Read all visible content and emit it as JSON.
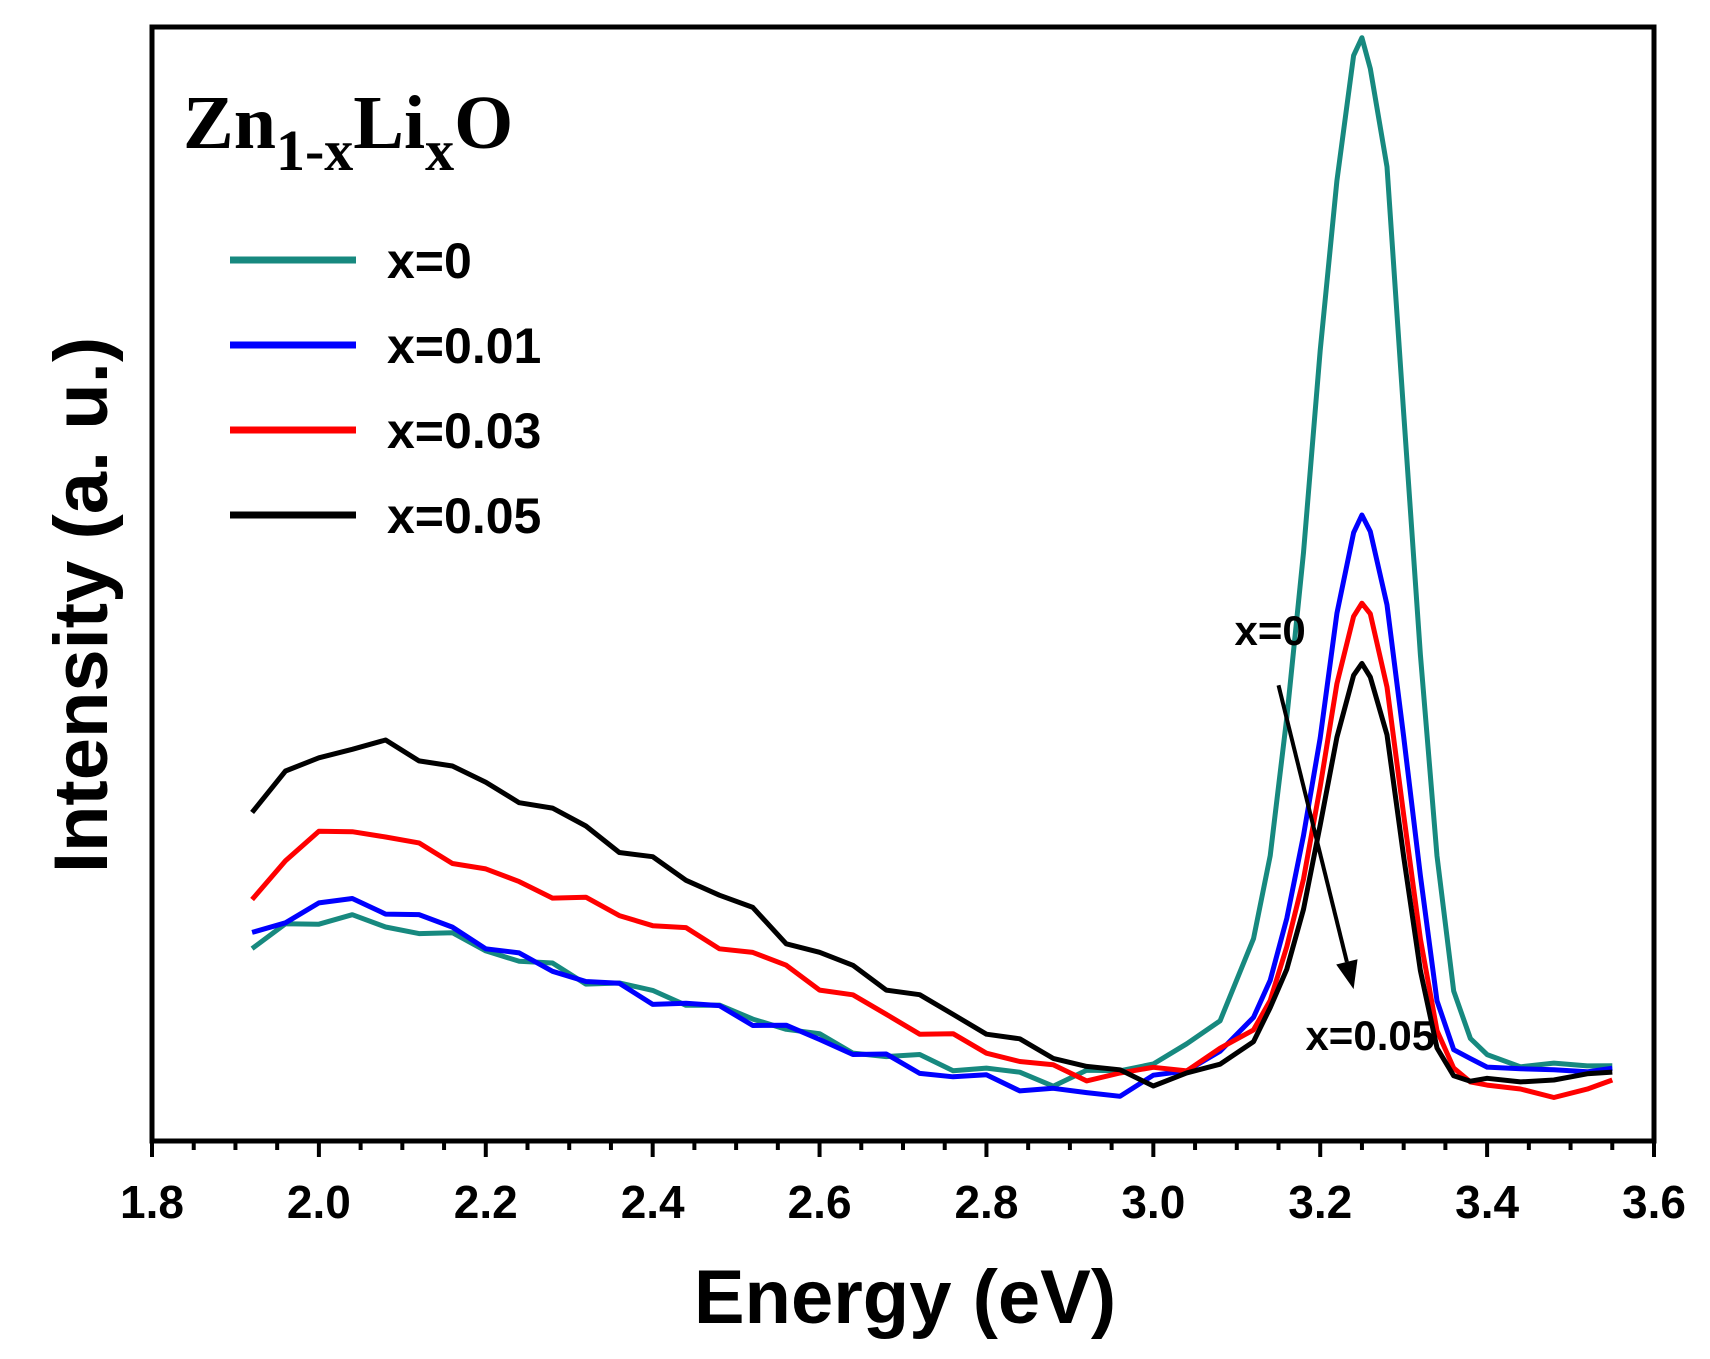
{
  "chart_data": {
    "type": "line",
    "title": "Zn1-xLixO",
    "title_parts": {
      "base1": "Zn",
      "sub1": "1-x",
      "base2": "Li",
      "sub2": "x",
      "base3": "O"
    },
    "xlabel": "Energy (eV)",
    "ylabel": "Intensity (a. u.)",
    "xlim": [
      1.8,
      3.6
    ],
    "ylim": [
      0,
      1.1
    ],
    "y_ticks_shown": false,
    "x_ticks": [
      1.8,
      2.0,
      2.2,
      2.4,
      2.6,
      2.8,
      3.0,
      3.2,
      3.4,
      3.6
    ],
    "x_tick_labels": [
      "1.8",
      "2.0",
      "2.2",
      "2.4",
      "2.6",
      "2.8",
      "3.0",
      "3.2",
      "3.4",
      "3.6"
    ],
    "grid": false,
    "legend_position": "top-left",
    "annotations": [
      {
        "text": "x=0",
        "x": 3.14,
        "y": 0.49
      },
      {
        "text": "x=0.05",
        "x": 3.26,
        "y": 0.09
      }
    ],
    "arrow": {
      "from": [
        3.15,
        0.45
      ],
      "to": [
        3.24,
        0.15
      ]
    },
    "series": [
      {
        "name": "x=0",
        "color": "#17897f",
        "x": [
          1.92,
          1.96,
          2.0,
          2.04,
          2.08,
          2.12,
          2.16,
          2.2,
          2.24,
          2.28,
          2.32,
          2.36,
          2.4,
          2.44,
          2.48,
          2.52,
          2.56,
          2.6,
          2.64,
          2.68,
          2.72,
          2.76,
          2.8,
          2.84,
          2.88,
          2.92,
          2.96,
          3.0,
          3.04,
          3.08,
          3.12,
          3.14,
          3.16,
          3.18,
          3.2,
          3.22,
          3.24,
          3.25,
          3.26,
          3.28,
          3.3,
          3.32,
          3.34,
          3.36,
          3.38,
          3.4,
          3.44,
          3.48,
          3.52,
          3.55
        ],
        "values": [
          0.19,
          0.21,
          0.22,
          0.22,
          0.21,
          0.21,
          0.2,
          0.19,
          0.18,
          0.17,
          0.16,
          0.155,
          0.145,
          0.14,
          0.13,
          0.12,
          0.115,
          0.1,
          0.09,
          0.085,
          0.08,
          0.075,
          0.07,
          0.065,
          0.06,
          0.065,
          0.07,
          0.08,
          0.09,
          0.12,
          0.2,
          0.28,
          0.42,
          0.58,
          0.78,
          0.95,
          1.07,
          1.09,
          1.06,
          0.96,
          0.72,
          0.48,
          0.28,
          0.15,
          0.1,
          0.085,
          0.075,
          0.075,
          0.075,
          0.075
        ]
      },
      {
        "name": "x=0.01",
        "color": "#0000ff",
        "x": [
          1.92,
          1.96,
          2.0,
          2.04,
          2.08,
          2.12,
          2.16,
          2.2,
          2.24,
          2.28,
          2.32,
          2.36,
          2.4,
          2.44,
          2.48,
          2.52,
          2.56,
          2.6,
          2.64,
          2.68,
          2.72,
          2.76,
          2.8,
          2.84,
          2.88,
          2.92,
          2.96,
          3.0,
          3.04,
          3.08,
          3.12,
          3.14,
          3.16,
          3.18,
          3.2,
          3.22,
          3.24,
          3.25,
          3.26,
          3.28,
          3.3,
          3.32,
          3.34,
          3.36,
          3.38,
          3.4,
          3.44,
          3.48,
          3.52,
          3.55
        ],
        "values": [
          0.2,
          0.22,
          0.235,
          0.235,
          0.23,
          0.22,
          0.21,
          0.195,
          0.18,
          0.17,
          0.16,
          0.15,
          0.14,
          0.135,
          0.13,
          0.12,
          0.11,
          0.1,
          0.09,
          0.08,
          0.07,
          0.065,
          0.06,
          0.055,
          0.05,
          0.045,
          0.05,
          0.06,
          0.07,
          0.09,
          0.12,
          0.16,
          0.22,
          0.3,
          0.4,
          0.52,
          0.6,
          0.62,
          0.6,
          0.53,
          0.4,
          0.26,
          0.14,
          0.09,
          0.08,
          0.075,
          0.07,
          0.07,
          0.07,
          0.07
        ]
      },
      {
        "name": "x=0.03",
        "color": "#ff0000",
        "x": [
          1.92,
          1.96,
          2.0,
          2.04,
          2.08,
          2.12,
          2.16,
          2.2,
          2.24,
          2.28,
          2.32,
          2.36,
          2.4,
          2.44,
          2.48,
          2.52,
          2.56,
          2.6,
          2.64,
          2.68,
          2.72,
          2.76,
          2.8,
          2.84,
          2.88,
          2.92,
          2.96,
          3.0,
          3.04,
          3.08,
          3.12,
          3.14,
          3.16,
          3.18,
          3.2,
          3.22,
          3.24,
          3.25,
          3.26,
          3.28,
          3.3,
          3.32,
          3.34,
          3.36,
          3.38,
          3.4,
          3.44,
          3.48,
          3.52,
          3.55
        ],
        "values": [
          0.24,
          0.28,
          0.3,
          0.31,
          0.3,
          0.29,
          0.28,
          0.265,
          0.255,
          0.245,
          0.235,
          0.225,
          0.215,
          0.205,
          0.195,
          0.185,
          0.17,
          0.155,
          0.14,
          0.125,
          0.11,
          0.1,
          0.09,
          0.08,
          0.07,
          0.065,
          0.065,
          0.07,
          0.075,
          0.09,
          0.11,
          0.14,
          0.19,
          0.26,
          0.35,
          0.45,
          0.52,
          0.53,
          0.52,
          0.45,
          0.32,
          0.2,
          0.11,
          0.07,
          0.06,
          0.055,
          0.05,
          0.045,
          0.05,
          0.06
        ]
      },
      {
        "name": "x=0.05",
        "color": "#000000",
        "x": [
          1.92,
          1.96,
          2.0,
          2.04,
          2.08,
          2.12,
          2.16,
          2.2,
          2.24,
          2.28,
          2.32,
          2.36,
          2.4,
          2.44,
          2.48,
          2.52,
          2.56,
          2.6,
          2.64,
          2.68,
          2.72,
          2.76,
          2.8,
          2.84,
          2.88,
          2.92,
          2.96,
          3.0,
          3.04,
          3.08,
          3.12,
          3.14,
          3.16,
          3.18,
          3.2,
          3.22,
          3.24,
          3.25,
          3.26,
          3.28,
          3.3,
          3.32,
          3.34,
          3.36,
          3.38,
          3.4,
          3.44,
          3.48,
          3.52,
          3.55
        ],
        "values": [
          0.33,
          0.36,
          0.38,
          0.39,
          0.39,
          0.38,
          0.37,
          0.35,
          0.34,
          0.325,
          0.31,
          0.29,
          0.275,
          0.26,
          0.245,
          0.225,
          0.2,
          0.185,
          0.17,
          0.155,
          0.14,
          0.125,
          0.11,
          0.095,
          0.085,
          0.075,
          0.065,
          0.06,
          0.065,
          0.075,
          0.1,
          0.13,
          0.17,
          0.23,
          0.31,
          0.4,
          0.46,
          0.47,
          0.46,
          0.4,
          0.28,
          0.17,
          0.09,
          0.065,
          0.06,
          0.06,
          0.06,
          0.06,
          0.065,
          0.07
        ]
      }
    ]
  }
}
